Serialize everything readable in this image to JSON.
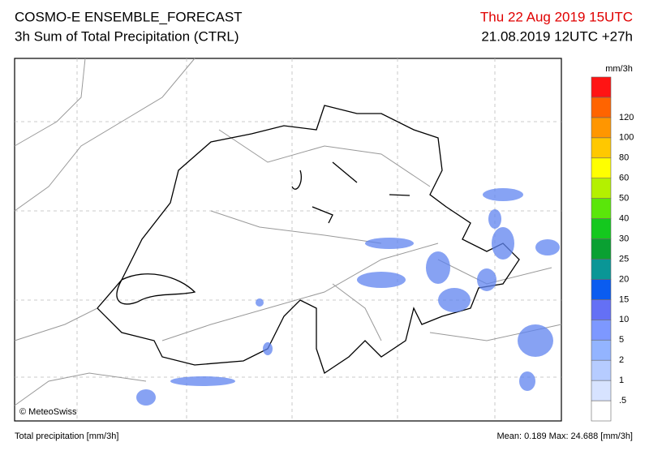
{
  "header": {
    "title": "COSMO-E ENSEMBLE_FORECAST",
    "subtitle": "3h Sum of Total Precipitation (CTRL)",
    "valid_time": "Thu 22 Aug 2019 15UTC",
    "run_time": "21.08.2019 12UTC +27h"
  },
  "map": {
    "credit": "© MeteoSwiss"
  },
  "legend": {
    "unit": "mm/3h",
    "labels": [
      ".5",
      "1",
      "2",
      "5",
      "10",
      "15",
      "20",
      "25",
      "30",
      "40",
      "50",
      "60",
      "80",
      "100",
      "120"
    ],
    "colors": [
      "#ffffff",
      "#d7e3ff",
      "#b6ccff",
      "#93b4ff",
      "#7d98ff",
      "#6470f5",
      "#0a5cf0",
      "#0a9696",
      "#0aa032",
      "#14c81e",
      "#5ae60a",
      "#b4f000",
      "#ffff00",
      "#ffc800",
      "#ff9600",
      "#ff6400",
      "#ff1414"
    ]
  },
  "footer": {
    "left": "Total precipitation [mm/3h]",
    "right": "Mean:  0.189 Max: 24.688 [mm/3h]"
  }
}
